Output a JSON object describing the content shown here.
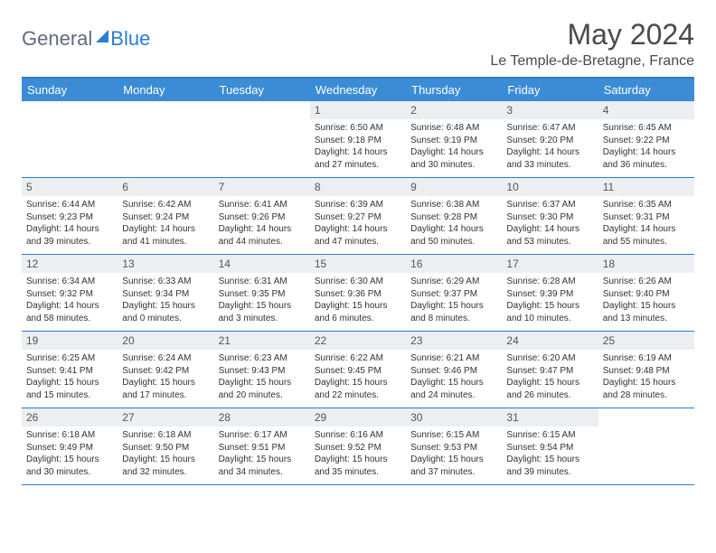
{
  "logo": {
    "text1": "General",
    "text2": "Blue"
  },
  "title": "May 2024",
  "location": "Le Temple-de-Bretagne, France",
  "colors": {
    "header_bg": "#3b8cd4",
    "border": "#2b7dd1",
    "daynum_bg": "#eceff1",
    "text": "#333333",
    "title": "#4a4a4a"
  },
  "day_names": [
    "Sunday",
    "Monday",
    "Tuesday",
    "Wednesday",
    "Thursday",
    "Friday",
    "Saturday"
  ],
  "weeks": [
    [
      null,
      null,
      null,
      {
        "n": "1",
        "sr": "6:50 AM",
        "ss": "9:18 PM",
        "dl": "14 hours and 27 minutes."
      },
      {
        "n": "2",
        "sr": "6:48 AM",
        "ss": "9:19 PM",
        "dl": "14 hours and 30 minutes."
      },
      {
        "n": "3",
        "sr": "6:47 AM",
        "ss": "9:20 PM",
        "dl": "14 hours and 33 minutes."
      },
      {
        "n": "4",
        "sr": "6:45 AM",
        "ss": "9:22 PM",
        "dl": "14 hours and 36 minutes."
      }
    ],
    [
      {
        "n": "5",
        "sr": "6:44 AM",
        "ss": "9:23 PM",
        "dl": "14 hours and 39 minutes."
      },
      {
        "n": "6",
        "sr": "6:42 AM",
        "ss": "9:24 PM",
        "dl": "14 hours and 41 minutes."
      },
      {
        "n": "7",
        "sr": "6:41 AM",
        "ss": "9:26 PM",
        "dl": "14 hours and 44 minutes."
      },
      {
        "n": "8",
        "sr": "6:39 AM",
        "ss": "9:27 PM",
        "dl": "14 hours and 47 minutes."
      },
      {
        "n": "9",
        "sr": "6:38 AM",
        "ss": "9:28 PM",
        "dl": "14 hours and 50 minutes."
      },
      {
        "n": "10",
        "sr": "6:37 AM",
        "ss": "9:30 PM",
        "dl": "14 hours and 53 minutes."
      },
      {
        "n": "11",
        "sr": "6:35 AM",
        "ss": "9:31 PM",
        "dl": "14 hours and 55 minutes."
      }
    ],
    [
      {
        "n": "12",
        "sr": "6:34 AM",
        "ss": "9:32 PM",
        "dl": "14 hours and 58 minutes."
      },
      {
        "n": "13",
        "sr": "6:33 AM",
        "ss": "9:34 PM",
        "dl": "15 hours and 0 minutes."
      },
      {
        "n": "14",
        "sr": "6:31 AM",
        "ss": "9:35 PM",
        "dl": "15 hours and 3 minutes."
      },
      {
        "n": "15",
        "sr": "6:30 AM",
        "ss": "9:36 PM",
        "dl": "15 hours and 6 minutes."
      },
      {
        "n": "16",
        "sr": "6:29 AM",
        "ss": "9:37 PM",
        "dl": "15 hours and 8 minutes."
      },
      {
        "n": "17",
        "sr": "6:28 AM",
        "ss": "9:39 PM",
        "dl": "15 hours and 10 minutes."
      },
      {
        "n": "18",
        "sr": "6:26 AM",
        "ss": "9:40 PM",
        "dl": "15 hours and 13 minutes."
      }
    ],
    [
      {
        "n": "19",
        "sr": "6:25 AM",
        "ss": "9:41 PM",
        "dl": "15 hours and 15 minutes."
      },
      {
        "n": "20",
        "sr": "6:24 AM",
        "ss": "9:42 PM",
        "dl": "15 hours and 17 minutes."
      },
      {
        "n": "21",
        "sr": "6:23 AM",
        "ss": "9:43 PM",
        "dl": "15 hours and 20 minutes."
      },
      {
        "n": "22",
        "sr": "6:22 AM",
        "ss": "9:45 PM",
        "dl": "15 hours and 22 minutes."
      },
      {
        "n": "23",
        "sr": "6:21 AM",
        "ss": "9:46 PM",
        "dl": "15 hours and 24 minutes."
      },
      {
        "n": "24",
        "sr": "6:20 AM",
        "ss": "9:47 PM",
        "dl": "15 hours and 26 minutes."
      },
      {
        "n": "25",
        "sr": "6:19 AM",
        "ss": "9:48 PM",
        "dl": "15 hours and 28 minutes."
      }
    ],
    [
      {
        "n": "26",
        "sr": "6:18 AM",
        "ss": "9:49 PM",
        "dl": "15 hours and 30 minutes."
      },
      {
        "n": "27",
        "sr": "6:18 AM",
        "ss": "9:50 PM",
        "dl": "15 hours and 32 minutes."
      },
      {
        "n": "28",
        "sr": "6:17 AM",
        "ss": "9:51 PM",
        "dl": "15 hours and 34 minutes."
      },
      {
        "n": "29",
        "sr": "6:16 AM",
        "ss": "9:52 PM",
        "dl": "15 hours and 35 minutes."
      },
      {
        "n": "30",
        "sr": "6:15 AM",
        "ss": "9:53 PM",
        "dl": "15 hours and 37 minutes."
      },
      {
        "n": "31",
        "sr": "6:15 AM",
        "ss": "9:54 PM",
        "dl": "15 hours and 39 minutes."
      },
      null
    ]
  ],
  "labels": {
    "sunrise": "Sunrise: ",
    "sunset": "Sunset: ",
    "daylight": "Daylight: "
  }
}
